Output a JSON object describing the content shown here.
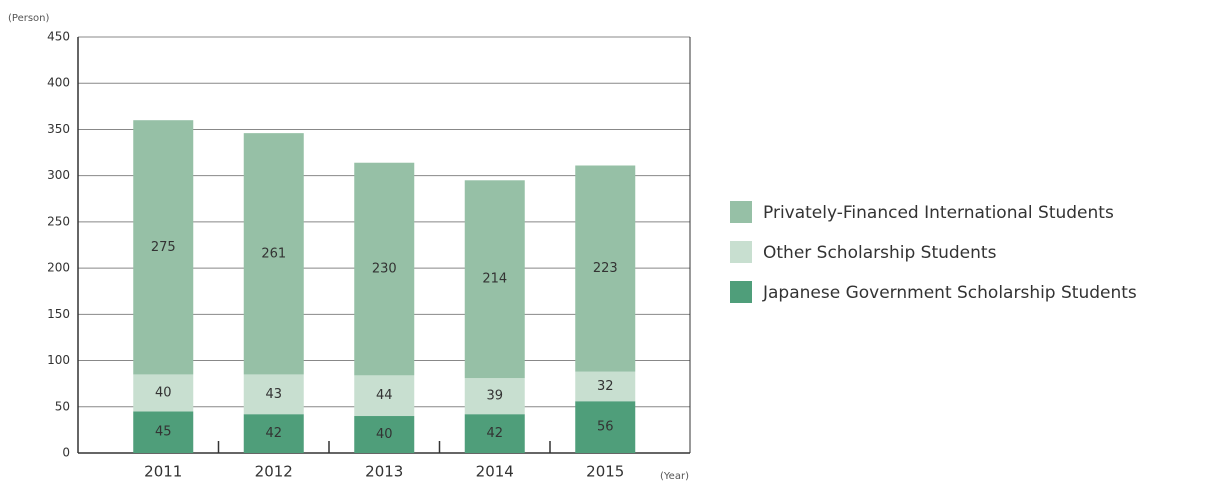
{
  "chart_data": {
    "type": "stacked_bar",
    "y_label": "(Person)",
    "x_label": "(Year)",
    "categories": [
      "2011",
      "2012",
      "2013",
      "2014",
      "2015"
    ],
    "series": [
      {
        "name": "Japanese Government Scholarship Students",
        "color": "#4f9e7a",
        "values": [
          45,
          42,
          40,
          42,
          56
        ]
      },
      {
        "name": "Other Scholarship Students",
        "color": "#c8dfd0",
        "values": [
          40,
          43,
          44,
          39,
          32
        ]
      },
      {
        "name": "Privately-Financed International Students",
        "color": "#96c0a6",
        "values": [
          275,
          261,
          230,
          214,
          223
        ]
      }
    ],
    "ylim": [
      0,
      450
    ],
    "yticks": [
      0,
      50,
      100,
      150,
      200,
      250,
      300,
      350,
      400,
      450
    ],
    "grid": true
  }
}
